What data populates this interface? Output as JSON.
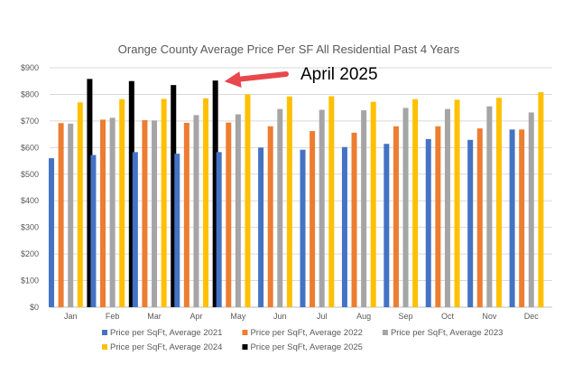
{
  "chart_data": {
    "type": "bar",
    "title": "Orange County Average Price Per SF All Residential Past 4 Years",
    "xlabel": "",
    "ylabel": "",
    "ylim": [
      0,
      900
    ],
    "y_ticks": [
      "$0",
      "$100",
      "$200",
      "$300",
      "$400",
      "$500",
      "$600",
      "$700",
      "$800",
      "$900"
    ],
    "grid": true,
    "legend_position": "bottom",
    "categories": [
      "Jan",
      "Feb",
      "Mar",
      "Apr",
      "May",
      "Jun",
      "Jul",
      "Aug",
      "Sep",
      "Oct",
      "Nov",
      "Dec"
    ],
    "series": [
      {
        "name": "Price per SqFt, Average 2021",
        "color": "#4472C4",
        "values": [
          560,
          572,
          583,
          577,
          583,
          600,
          592,
          602,
          614,
          632,
          629,
          668
        ]
      },
      {
        "name": "Price per SqFt, Average 2022",
        "color": "#ED7D31",
        "values": [
          692,
          705,
          703,
          693,
          694,
          680,
          662,
          656,
          680,
          680,
          672,
          668
        ]
      },
      {
        "name": "Price per SqFt, Average 2023",
        "color": "#A5A5A5",
        "values": [
          690,
          712,
          702,
          722,
          725,
          745,
          742,
          740,
          749,
          745,
          755,
          732
        ]
      },
      {
        "name": "Price per SqFt, Average 2024",
        "color": "#FFC000",
        "values": [
          770,
          782,
          783,
          785,
          800,
          792,
          793,
          772,
          782,
          780,
          787,
          808
        ]
      },
      {
        "name": "Price per SqFt, Average 2025",
        "color": "#000000",
        "values": [
          858,
          850,
          835,
          852,
          null,
          null,
          null,
          null,
          null,
          null,
          null,
          null
        ]
      }
    ],
    "annotations": [
      {
        "text": "April 2025",
        "points_to": "Apr",
        "series": "Price per SqFt, Average 2025",
        "arrow_color": "#E8474C"
      }
    ]
  },
  "colors": {
    "gridline": "#D9D9D9",
    "axis": "#BFBFBF",
    "text": "#595959",
    "arrow": "#E8474C"
  }
}
